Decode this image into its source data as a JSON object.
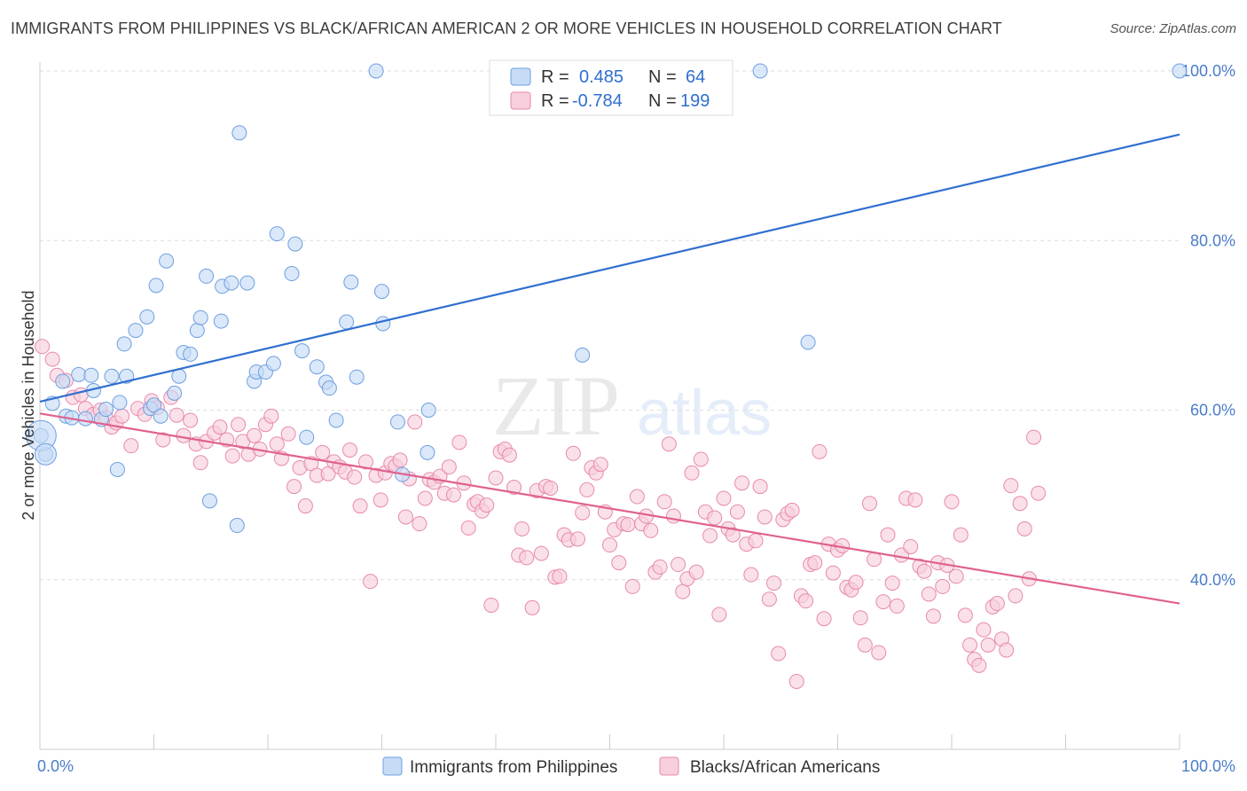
{
  "header": {
    "title": "IMMIGRANTS FROM PHILIPPINES VS BLACK/AFRICAN AMERICAN 2 OR MORE VEHICLES IN HOUSEHOLD CORRELATION CHART",
    "source": "Source: ZipAtlas.com"
  },
  "watermark": {
    "zip": "ZIP",
    "atlas": "atlas"
  },
  "colors": {
    "blue": "#6f9fe0",
    "blue_fill": "#c6dbf6",
    "blue_line": "#2f6fcf",
    "pink": "#e88aab",
    "pink_fill": "#f8cfdd",
    "pink_line": "#e0628e",
    "axis_label": "#4a7cc9"
  },
  "legend": {
    "rows": [
      {
        "r_label": "R =",
        "r_value": "0.485",
        "n_label": "N =",
        "n_value": "64"
      },
      {
        "r_label": "R =",
        "r_value": "-0.784",
        "n_label": "N =",
        "n_value": "199"
      }
    ]
  },
  "chart_data": {
    "type": "scatter",
    "title": "IMMIGRANTS FROM PHILIPPINES VS BLACK/AFRICAN AMERICAN 2 OR MORE VEHICLES IN HOUSEHOLD CORRELATION CHART",
    "xlabel": "",
    "ylabel": "2 or more Vehicles in Household",
    "xlim": [
      0,
      100
    ],
    "ylim": [
      20,
      100
    ],
    "x_tick_labels": [
      "0.0%",
      "100.0%"
    ],
    "y_ticks": [
      40,
      60,
      80,
      100
    ],
    "y_tick_labels": [
      "40.0%",
      "60.0%",
      "80.0%",
      "100.0%"
    ],
    "grid": "horizontal dashed",
    "legend_position": "top-center",
    "series": [
      {
        "name": "Immigrants from Philippines",
        "R": 0.485,
        "N": 64,
        "trend": {
          "x": [
            0,
            100
          ],
          "y": [
            61.0,
            92.5
          ]
        },
        "points": [
          [
            0.1,
            57.0
          ],
          [
            0.5,
            54.8
          ],
          [
            1.1,
            60.8
          ],
          [
            2.0,
            63.4
          ],
          [
            2.3,
            59.3
          ],
          [
            2.8,
            59.1
          ],
          [
            3.4,
            64.2
          ],
          [
            4.0,
            59.0
          ],
          [
            4.5,
            64.1
          ],
          [
            4.7,
            62.3
          ],
          [
            5.4,
            58.9
          ],
          [
            5.8,
            60.1
          ],
          [
            6.3,
            64.0
          ],
          [
            6.8,
            53.0
          ],
          [
            7.0,
            60.9
          ],
          [
            7.4,
            67.8
          ],
          [
            7.6,
            64.0
          ],
          [
            8.4,
            69.4
          ],
          [
            9.4,
            71.0
          ],
          [
            9.7,
            60.2
          ],
          [
            10.0,
            60.6
          ],
          [
            10.2,
            74.7
          ],
          [
            10.6,
            59.3
          ],
          [
            11.1,
            77.6
          ],
          [
            11.8,
            62.0
          ],
          [
            12.2,
            64.0
          ],
          [
            12.6,
            66.8
          ],
          [
            13.2,
            66.6
          ],
          [
            13.8,
            69.4
          ],
          [
            14.1,
            70.9
          ],
          [
            14.6,
            75.8
          ],
          [
            14.9,
            49.3
          ],
          [
            15.9,
            70.5
          ],
          [
            16.0,
            74.6
          ],
          [
            16.8,
            75.0
          ],
          [
            17.3,
            46.4
          ],
          [
            17.5,
            92.7
          ],
          [
            18.2,
            75.0
          ],
          [
            18.8,
            63.4
          ],
          [
            19.0,
            64.5
          ],
          [
            19.8,
            64.5
          ],
          [
            20.5,
            65.5
          ],
          [
            20.8,
            80.8
          ],
          [
            22.1,
            76.1
          ],
          [
            22.4,
            79.6
          ],
          [
            23.0,
            67.0
          ],
          [
            23.4,
            56.8
          ],
          [
            24.3,
            65.1
          ],
          [
            25.1,
            63.3
          ],
          [
            25.4,
            62.6
          ],
          [
            26.0,
            58.8
          ],
          [
            26.9,
            70.4
          ],
          [
            27.3,
            75.1
          ],
          [
            27.8,
            63.9
          ],
          [
            29.5,
            100.0
          ],
          [
            30.0,
            74.0
          ],
          [
            30.1,
            70.2
          ],
          [
            31.4,
            58.6
          ],
          [
            31.8,
            52.4
          ],
          [
            34.0,
            55.0
          ],
          [
            34.1,
            60.0
          ],
          [
            47.6,
            66.5
          ],
          [
            63.2,
            100.0
          ],
          [
            67.4,
            68.0
          ],
          [
            100.0,
            100.0
          ]
        ]
      },
      {
        "name": "Blacks/African Americans",
        "R": -0.784,
        "N": 199,
        "trend": {
          "x": [
            0,
            100
          ],
          "y": [
            59.6,
            37.2
          ]
        },
        "points": [
          [
            0.2,
            67.5
          ],
          [
            1.1,
            66.0
          ],
          [
            1.5,
            64.1
          ],
          [
            2.3,
            63.5
          ],
          [
            2.9,
            61.5
          ],
          [
            3.6,
            61.8
          ],
          [
            4.0,
            60.2
          ],
          [
            4.7,
            59.5
          ],
          [
            5.3,
            60.0
          ],
          [
            5.8,
            59.1
          ],
          [
            6.3,
            58.0
          ],
          [
            6.7,
            58.5
          ],
          [
            7.2,
            59.3
          ],
          [
            8.0,
            55.8
          ],
          [
            8.6,
            60.2
          ],
          [
            9.2,
            59.5
          ],
          [
            9.8,
            61.1
          ],
          [
            10.3,
            60.3
          ],
          [
            10.8,
            56.5
          ],
          [
            11.5,
            61.5
          ],
          [
            12.0,
            59.4
          ],
          [
            12.6,
            57.0
          ],
          [
            13.2,
            58.8
          ],
          [
            13.7,
            56.0
          ],
          [
            14.1,
            53.8
          ],
          [
            14.6,
            56.3
          ],
          [
            15.3,
            57.3
          ],
          [
            15.8,
            58.0
          ],
          [
            16.4,
            56.5
          ],
          [
            16.9,
            54.6
          ],
          [
            17.4,
            58.3
          ],
          [
            17.8,
            56.3
          ],
          [
            18.3,
            54.8
          ],
          [
            18.8,
            57.0
          ],
          [
            19.3,
            55.4
          ],
          [
            19.8,
            58.3
          ],
          [
            20.3,
            59.3
          ],
          [
            20.8,
            56.0
          ],
          [
            21.2,
            54.3
          ],
          [
            21.8,
            57.2
          ],
          [
            22.3,
            51.0
          ],
          [
            22.8,
            53.2
          ],
          [
            23.3,
            48.7
          ],
          [
            23.8,
            53.7
          ],
          [
            24.3,
            52.3
          ],
          [
            24.8,
            55.0
          ],
          [
            25.3,
            52.5
          ],
          [
            25.8,
            53.9
          ],
          [
            26.3,
            53.3
          ],
          [
            26.8,
            52.7
          ],
          [
            27.2,
            55.3
          ],
          [
            27.6,
            52.1
          ],
          [
            28.1,
            48.7
          ],
          [
            28.6,
            53.9
          ],
          [
            29.0,
            39.8
          ],
          [
            29.5,
            52.3
          ],
          [
            29.9,
            49.4
          ],
          [
            30.3,
            52.6
          ],
          [
            30.8,
            53.7
          ],
          [
            31.2,
            53.4
          ],
          [
            31.6,
            54.1
          ],
          [
            32.1,
            47.4
          ],
          [
            32.4,
            51.9
          ],
          [
            32.9,
            58.6
          ],
          [
            33.3,
            46.6
          ],
          [
            33.8,
            49.6
          ],
          [
            34.2,
            51.8
          ],
          [
            34.6,
            51.5
          ],
          [
            35.1,
            52.2
          ],
          [
            35.5,
            50.2
          ],
          [
            35.9,
            53.3
          ],
          [
            36.3,
            50.0
          ],
          [
            36.8,
            56.2
          ],
          [
            37.2,
            51.4
          ],
          [
            37.6,
            46.1
          ],
          [
            38.1,
            48.9
          ],
          [
            38.4,
            49.2
          ],
          [
            38.8,
            48.1
          ],
          [
            39.2,
            48.8
          ],
          [
            39.6,
            37.0
          ],
          [
            40.0,
            52.0
          ],
          [
            40.4,
            55.1
          ],
          [
            40.8,
            55.4
          ],
          [
            41.2,
            54.7
          ],
          [
            41.6,
            50.9
          ],
          [
            42.0,
            42.9
          ],
          [
            42.3,
            46.0
          ],
          [
            42.7,
            42.6
          ],
          [
            43.2,
            36.7
          ],
          [
            43.6,
            50.5
          ],
          [
            44.0,
            43.1
          ],
          [
            44.4,
            51.0
          ],
          [
            44.8,
            50.8
          ],
          [
            45.2,
            40.3
          ],
          [
            45.6,
            40.4
          ],
          [
            46.0,
            45.3
          ],
          [
            46.4,
            44.7
          ],
          [
            46.8,
            54.9
          ],
          [
            47.2,
            44.8
          ],
          [
            47.6,
            47.9
          ],
          [
            48.0,
            50.6
          ],
          [
            48.4,
            53.2
          ],
          [
            48.8,
            52.6
          ],
          [
            49.2,
            53.6
          ],
          [
            49.6,
            48.0
          ],
          [
            50.0,
            44.1
          ],
          [
            50.4,
            45.9
          ],
          [
            50.8,
            42.0
          ],
          [
            51.2,
            46.6
          ],
          [
            51.6,
            46.5
          ],
          [
            52.0,
            39.2
          ],
          [
            52.4,
            49.8
          ],
          [
            52.8,
            46.6
          ],
          [
            53.2,
            47.5
          ],
          [
            53.6,
            45.8
          ],
          [
            54.0,
            40.9
          ],
          [
            54.4,
            41.5
          ],
          [
            54.8,
            49.2
          ],
          [
            55.2,
            56.0
          ],
          [
            55.6,
            47.5
          ],
          [
            56.0,
            41.8
          ],
          [
            56.4,
            38.6
          ],
          [
            56.8,
            40.1
          ],
          [
            57.2,
            52.6
          ],
          [
            57.6,
            40.9
          ],
          [
            58.0,
            54.2
          ],
          [
            58.4,
            48.0
          ],
          [
            58.8,
            45.2
          ],
          [
            59.2,
            47.3
          ],
          [
            59.6,
            35.9
          ],
          [
            60.0,
            49.6
          ],
          [
            60.4,
            46.0
          ],
          [
            60.8,
            45.3
          ],
          [
            61.2,
            48.0
          ],
          [
            61.6,
            51.4
          ],
          [
            62.0,
            44.2
          ],
          [
            62.4,
            40.6
          ],
          [
            62.8,
            44.6
          ],
          [
            63.2,
            51.0
          ],
          [
            63.6,
            47.4
          ],
          [
            64.0,
            37.7
          ],
          [
            64.4,
            39.6
          ],
          [
            64.8,
            31.3
          ],
          [
            65.2,
            47.1
          ],
          [
            65.6,
            47.8
          ],
          [
            66.0,
            48.2
          ],
          [
            66.4,
            28.0
          ],
          [
            66.8,
            38.1
          ],
          [
            67.2,
            37.5
          ],
          [
            67.6,
            41.8
          ],
          [
            68.0,
            42.0
          ],
          [
            68.4,
            55.1
          ],
          [
            68.8,
            35.4
          ],
          [
            69.2,
            44.2
          ],
          [
            69.6,
            40.8
          ],
          [
            70.0,
            43.5
          ],
          [
            70.4,
            44.0
          ],
          [
            70.8,
            39.1
          ],
          [
            71.2,
            38.8
          ],
          [
            71.6,
            39.7
          ],
          [
            72.0,
            35.5
          ],
          [
            72.4,
            32.3
          ],
          [
            72.8,
            49.0
          ],
          [
            73.2,
            42.4
          ],
          [
            73.6,
            31.4
          ],
          [
            74.0,
            37.4
          ],
          [
            74.4,
            45.3
          ],
          [
            74.8,
            39.6
          ],
          [
            75.2,
            36.9
          ],
          [
            75.6,
            42.9
          ],
          [
            76.0,
            49.6
          ],
          [
            76.4,
            43.9
          ],
          [
            76.8,
            49.4
          ],
          [
            77.2,
            41.6
          ],
          [
            77.6,
            41.0
          ],
          [
            78.0,
            38.3
          ],
          [
            78.4,
            35.7
          ],
          [
            78.8,
            42.0
          ],
          [
            79.2,
            39.2
          ],
          [
            79.6,
            41.7
          ],
          [
            80.0,
            49.2
          ],
          [
            80.4,
            40.4
          ],
          [
            80.8,
            45.3
          ],
          [
            81.2,
            35.8
          ],
          [
            81.6,
            32.3
          ],
          [
            82.0,
            30.6
          ],
          [
            82.4,
            29.9
          ],
          [
            82.8,
            34.1
          ],
          [
            83.2,
            32.3
          ],
          [
            83.6,
            36.8
          ],
          [
            84.0,
            37.2
          ],
          [
            84.4,
            33.0
          ],
          [
            84.8,
            31.7
          ],
          [
            85.2,
            51.1
          ],
          [
            85.6,
            38.1
          ],
          [
            86.0,
            49.0
          ],
          [
            86.4,
            46.0
          ],
          [
            86.8,
            40.1
          ],
          [
            87.2,
            56.8
          ],
          [
            87.6,
            50.2
          ]
        ]
      }
    ]
  },
  "bottom_legend": {
    "items": [
      {
        "label": "Immigrants from Philippines"
      },
      {
        "label": "Blacks/African Americans"
      }
    ]
  }
}
